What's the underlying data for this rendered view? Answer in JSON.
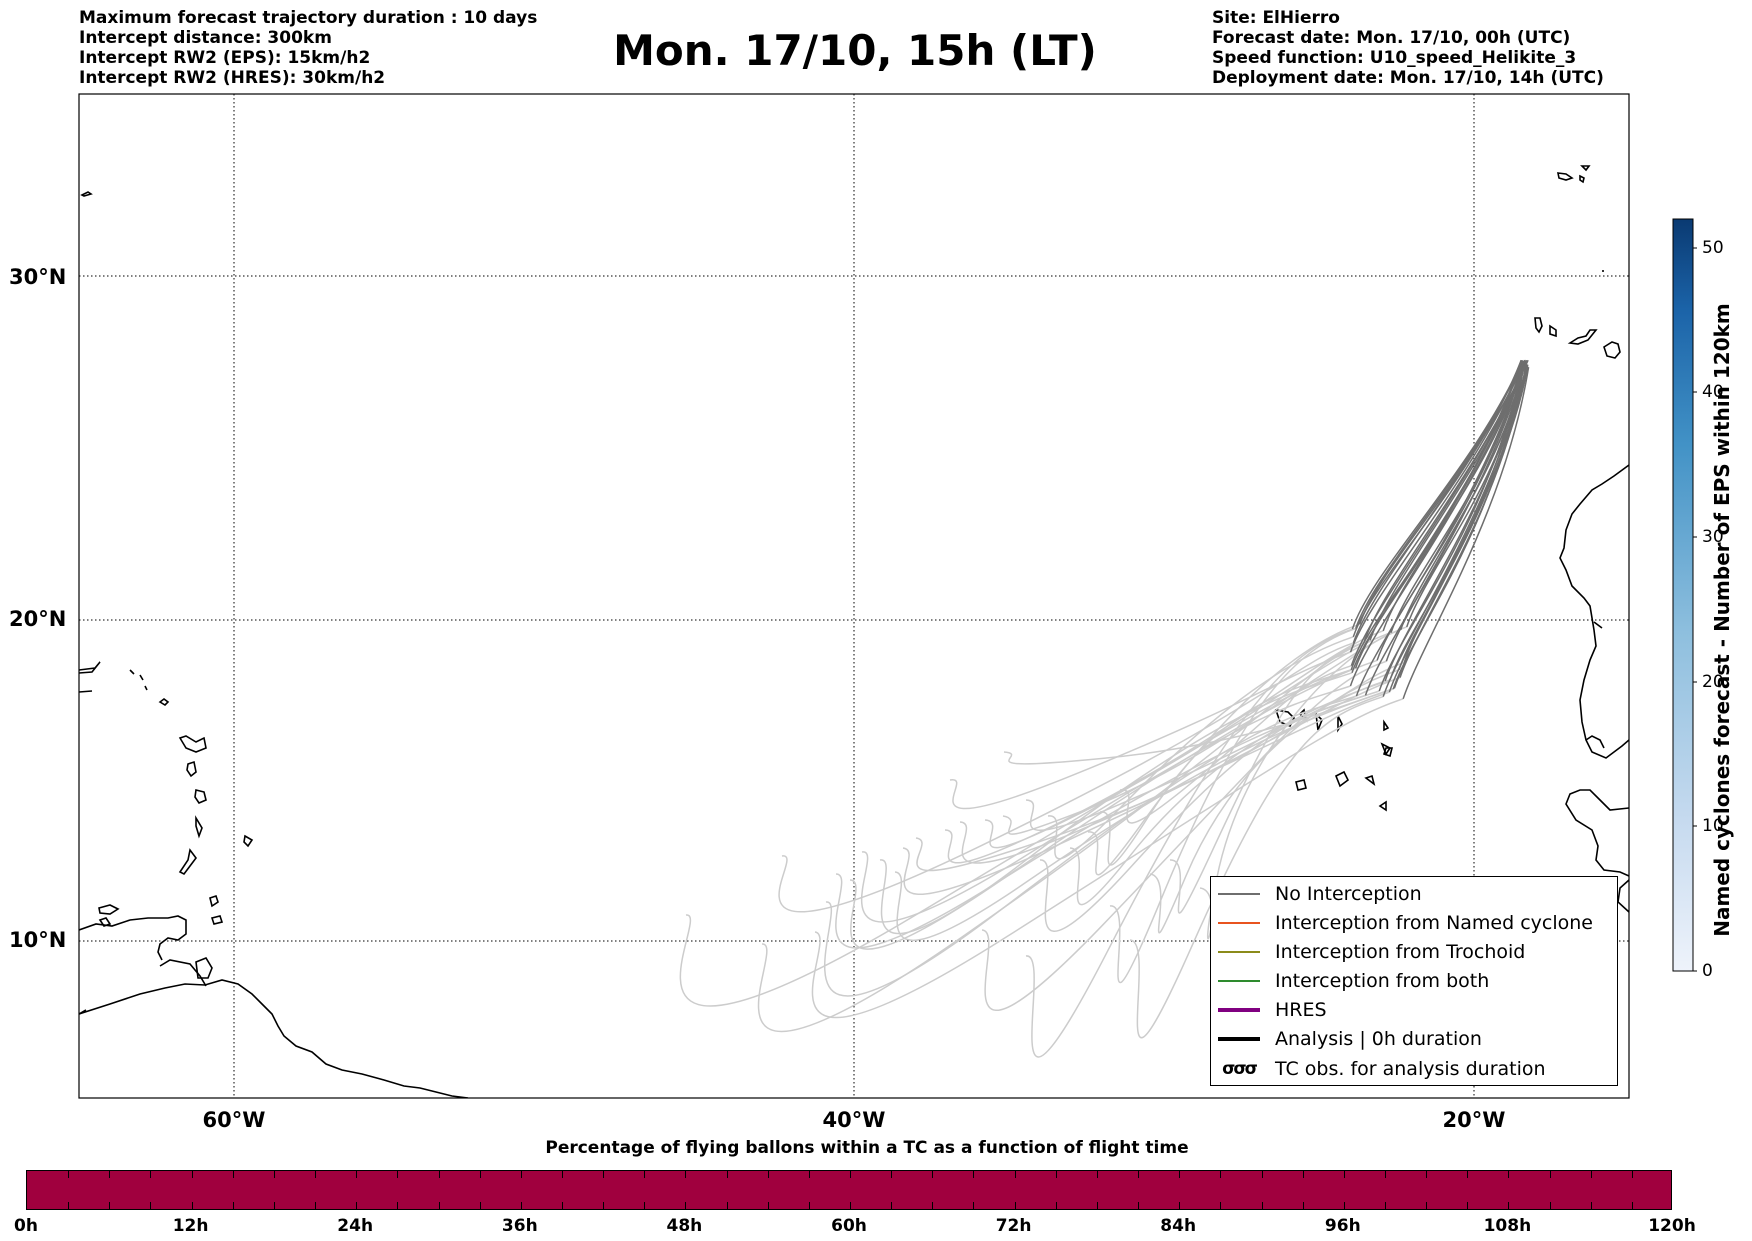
{
  "header_left": [
    "Maximum forecast trajectory duration : 10 days",
    "Intercept distance: 300km",
    "Intercept RW2 (EPS):  15km/h2",
    "Intercept RW2 (HRES): 30km/h2"
  ],
  "title": "Mon. 17/10, 15h (LT)",
  "header_right": [
    "Site: ElHierro",
    "Forecast date: Mon. 17/10, 00h (UTC)",
    "Speed function: U10_speed_Helikite_3",
    "Deployment date: Mon. 17/10, 14h (UTC)"
  ],
  "map": {
    "lon_range": [
      -65,
      -15
    ],
    "lat_range": [
      5,
      34.2
    ],
    "lat_labels": [
      "30°N",
      "20°N",
      "10°N"
    ],
    "lon_labels": [
      "60°W",
      "40°W",
      "20°W"
    ],
    "grid": "dotted",
    "colors": {
      "no_interception": "#6e6e6e",
      "no_interception_late": "#cccccc",
      "named_cyclone": "#e8531f",
      "trochoid": "#8b8b1a",
      "both": "#2e8b2e",
      "hres": "#800080",
      "analysis": "#000000"
    }
  },
  "legend": [
    {
      "label": "No Interception",
      "style": "thin",
      "color": "#6e6e6e"
    },
    {
      "label": "Interception from Named cyclone",
      "style": "thin",
      "color": "#e8531f"
    },
    {
      "label": "Interception from Trochoid",
      "style": "thin",
      "color": "#8b8b1a"
    },
    {
      "label": "Interception from both",
      "style": "thin",
      "color": "#2e8b2e"
    },
    {
      "label": "HRES",
      "style": "thick",
      "color": "#800080"
    },
    {
      "label": "Analysis | 0h duration",
      "style": "thick",
      "color": "#000000"
    },
    {
      "label": "TC obs. for analysis duration",
      "style": "circles",
      "color": "#000000",
      "icon": "cyclone-circles-icon"
    }
  ],
  "colorbar": {
    "label": "Named cyclones forecast - Number of EPS within 120km",
    "ticks": [
      "0",
      "10",
      "20",
      "30",
      "40",
      "50"
    ],
    "range": [
      0,
      52
    ]
  },
  "tc_bar": {
    "title": "Percentage of flying ballons within a TC as a function of flight time",
    "color": "#a0003e",
    "labels": [
      "0h",
      "12h",
      "24h",
      "36h",
      "48h",
      "60h",
      "72h",
      "84h",
      "96h",
      "108h",
      "120h"
    ]
  }
}
